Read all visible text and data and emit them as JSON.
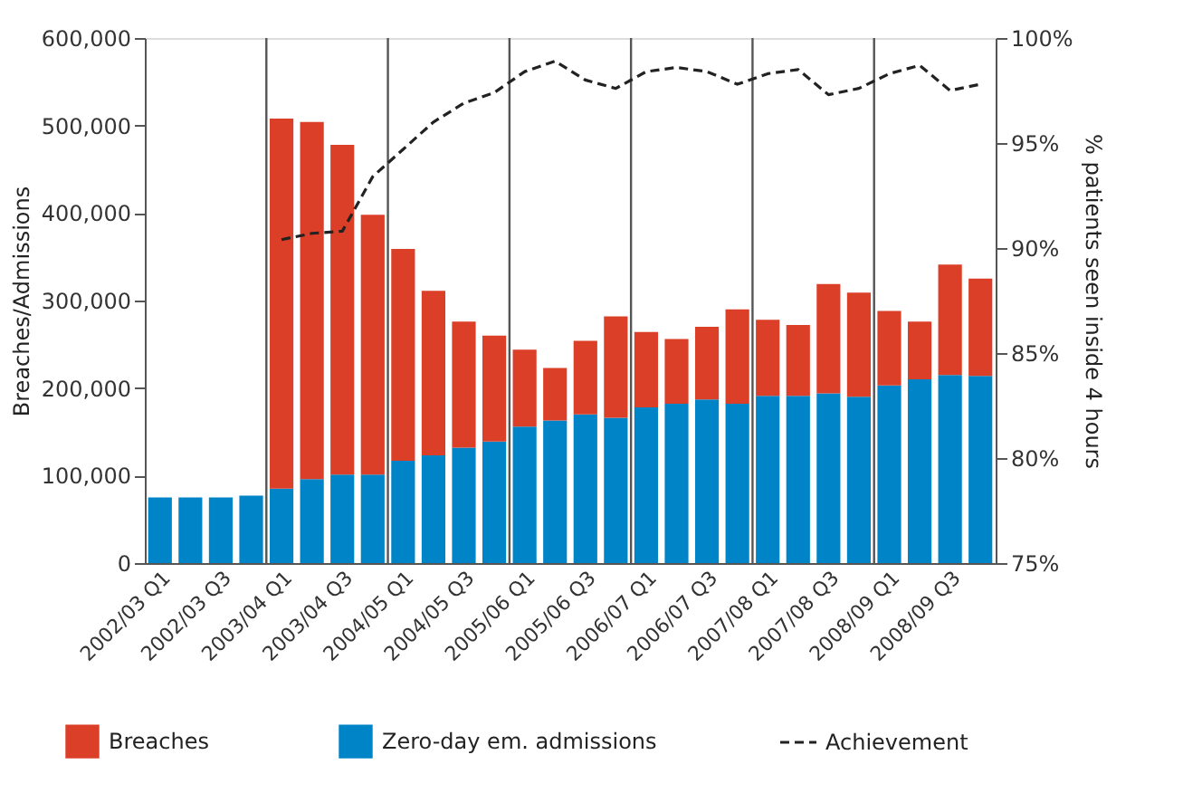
{
  "chart_data": {
    "type": "bar",
    "stacked": true,
    "categories": [
      "2002/03 Q1",
      null,
      "2002/03 Q3",
      null,
      "2003/04 Q1",
      null,
      "2003/04 Q3",
      null,
      "2004/05 Q1",
      null,
      "2004/05 Q3",
      null,
      "2005/06 Q1",
      null,
      "2005/06 Q3",
      null,
      "2006/07 Q1",
      null,
      "2006/07 Q3",
      null,
      "2007/08 Q1",
      null,
      "2007/08 Q3",
      null,
      "2008/09 Q1",
      null,
      "2008/09 Q3",
      null
    ],
    "series": [
      {
        "name": "Zero-day em. admissions",
        "color": "#0084c8",
        "values": [
          75000,
          75000,
          75000,
          77000,
          85000,
          96000,
          101000,
          101000,
          117000,
          123000,
          132000,
          139000,
          156000,
          163000,
          170000,
          166000,
          178000,
          182000,
          187000,
          182000,
          191000,
          191000,
          194000,
          190000,
          203000,
          210000,
          215000,
          214000
        ]
      },
      {
        "name": "Breaches",
        "color": "#dc3f28",
        "values": [
          null,
          null,
          null,
          null,
          423000,
          408000,
          377000,
          297000,
          242000,
          188000,
          144000,
          121000,
          88000,
          60000,
          84000,
          116000,
          86000,
          74000,
          83000,
          108000,
          87000,
          81000,
          125000,
          119000,
          85000,
          66000,
          126000,
          111000
        ]
      },
      {
        "name": "Achievement",
        "type": "line",
        "axis": "y2",
        "color": "#222222",
        "line_style": "dashed",
        "values": [
          null,
          null,
          null,
          null,
          90.4,
          90.7,
          90.8,
          93.4,
          94.7,
          96.0,
          96.9,
          97.4,
          98.4,
          98.9,
          98.0,
          97.6,
          98.4,
          98.6,
          98.4,
          97.8,
          98.3,
          98.5,
          97.3,
          97.6,
          98.3,
          98.7,
          97.5,
          97.8
        ]
      }
    ],
    "ylabel": "Breaches/Admissions",
    "y2label": "% patients seen inside 4 hours",
    "ylim": [
      0,
      600000
    ],
    "yticks": [
      {
        "value": 0,
        "label": "0"
      },
      {
        "value": 100000,
        "label": "100,000"
      },
      {
        "value": 200000,
        "label": "200,000"
      },
      {
        "value": 300000,
        "label": "300,000"
      },
      {
        "value": 400000,
        "label": "400,000"
      },
      {
        "value": 500000,
        "label": "500,000"
      },
      {
        "value": 600000,
        "label": "600,000"
      }
    ],
    "y2lim": [
      75,
      100
    ],
    "y2ticks": [
      {
        "value": 75,
        "label": "75%"
      },
      {
        "value": 80,
        "label": "80%"
      },
      {
        "value": 85,
        "label": "85%"
      },
      {
        "value": 90,
        "label": "90%"
      },
      {
        "value": 95,
        "label": "95%"
      },
      {
        "value": 100,
        "label": "100%"
      }
    ],
    "legend": "bottom",
    "grid": "x"
  }
}
